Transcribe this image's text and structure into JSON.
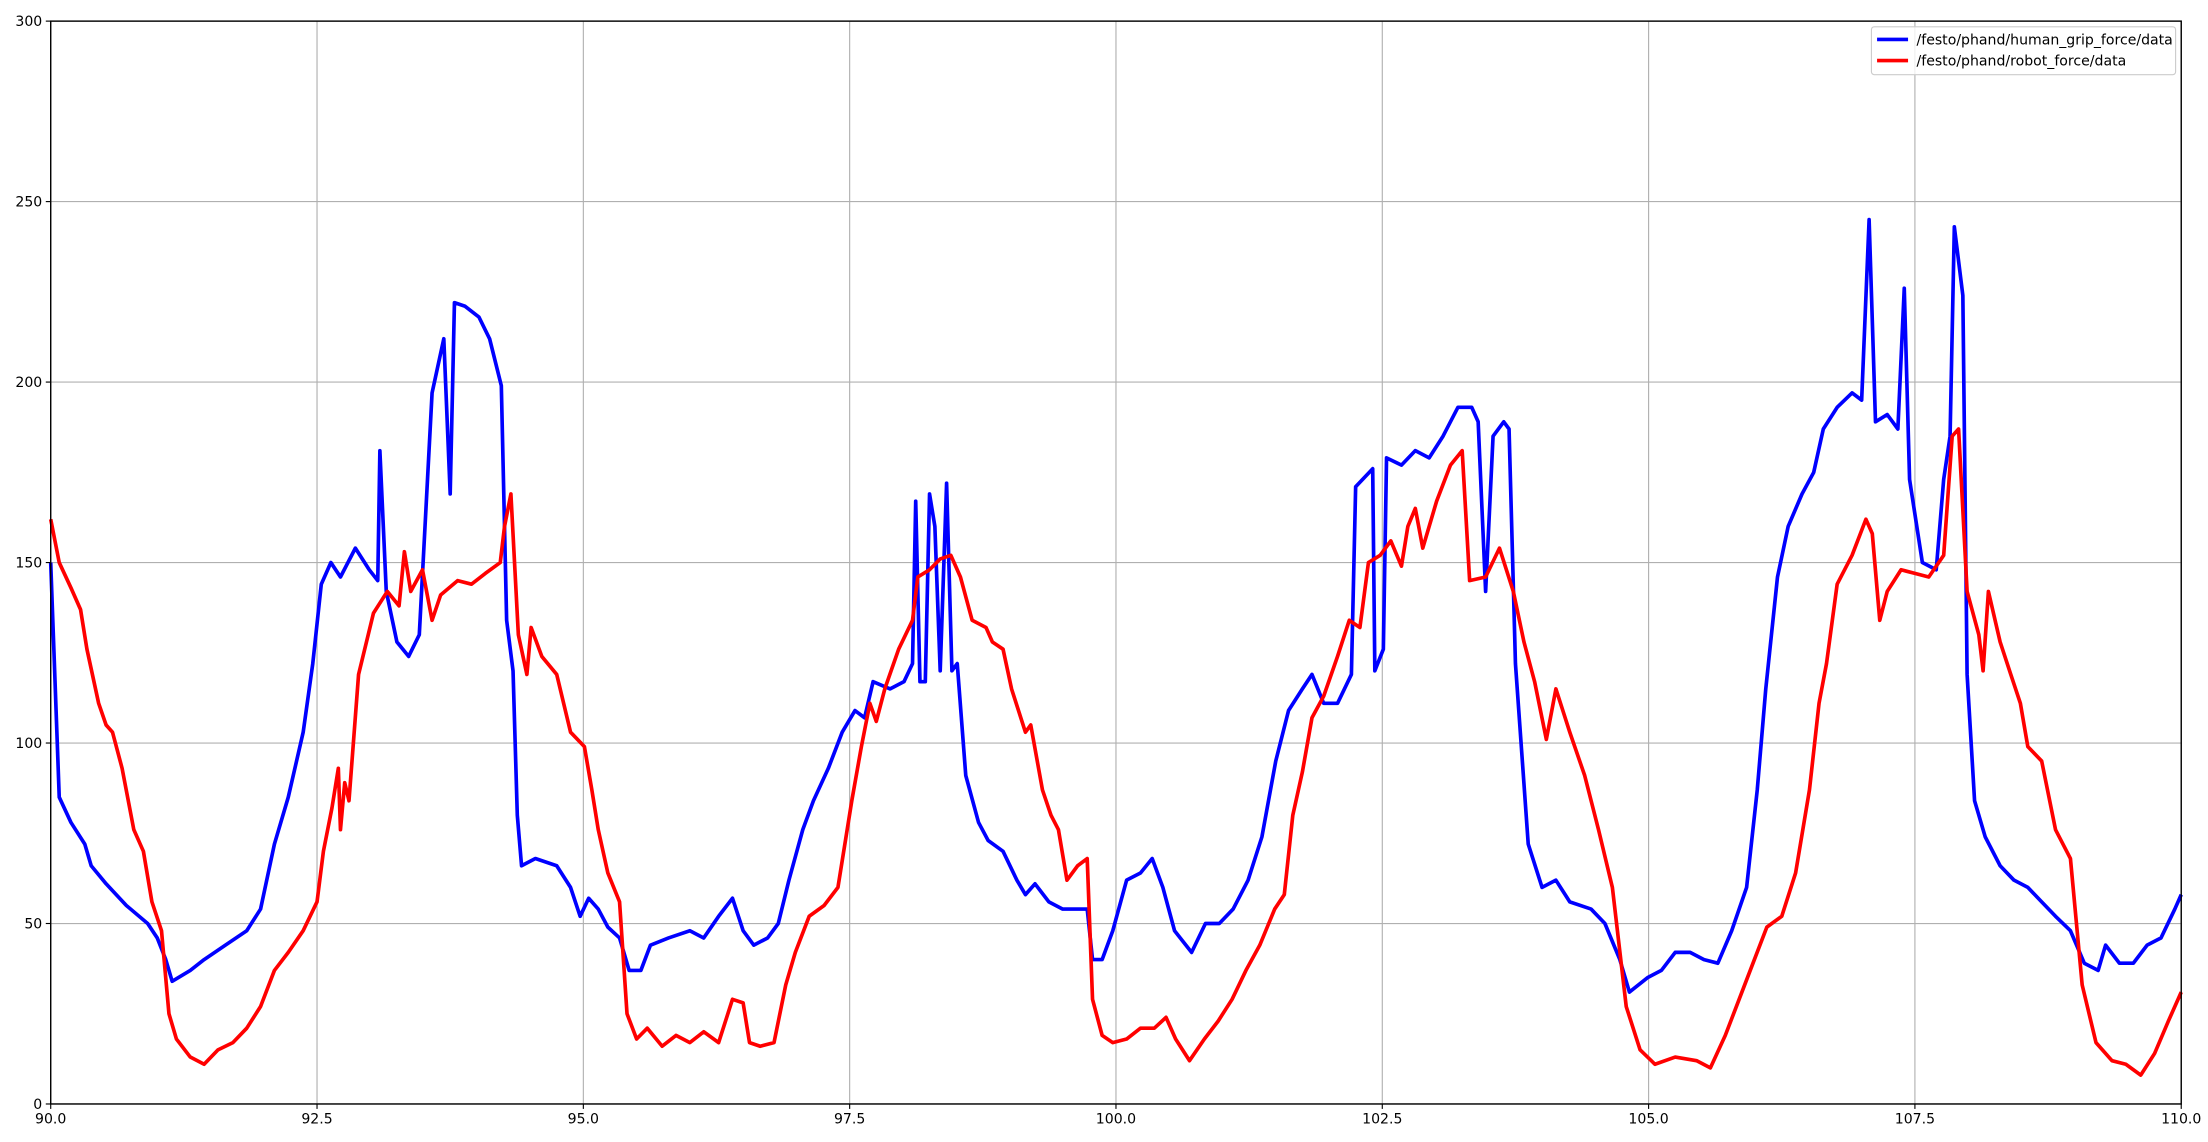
{
  "chart_data": {
    "type": "line",
    "xlim": [
      90,
      110
    ],
    "xticks": [
      {
        "value": 90,
        "label": "90.0"
      },
      {
        "value": 92.5,
        "label": "92.5"
      },
      {
        "value": 95,
        "label": "95.0"
      },
      {
        "value": 97.5,
        "label": "97.5"
      },
      {
        "value": 100,
        "label": "100.0"
      },
      {
        "value": 102.5,
        "label": "102.5"
      },
      {
        "value": 105,
        "label": "105.0"
      },
      {
        "value": 107.5,
        "label": "107.5"
      },
      {
        "value": 110,
        "label": "110.0"
      }
    ],
    "ylim": [
      0,
      300
    ],
    "yticks": [
      0,
      50,
      100,
      150,
      200,
      250,
      300
    ],
    "grid": true,
    "legend": "upper right",
    "series": [
      {
        "name": "/festo/phand/human_grip_force/data",
        "color": "#0000ff",
        "x": [
          90.0,
          90.08,
          90.19,
          90.32,
          90.38,
          90.52,
          90.71,
          90.91,
          91.0,
          91.08,
          91.14,
          91.31,
          91.44,
          91.64,
          91.84,
          91.97,
          92.1,
          92.23,
          92.37,
          92.46,
          92.54,
          92.63,
          92.72,
          92.86,
          92.99,
          93.07,
          93.09,
          93.15,
          93.25,
          93.36,
          93.46,
          93.58,
          93.69,
          93.75,
          93.79,
          93.89,
          94.02,
          94.12,
          94.23,
          94.28,
          94.34,
          94.38,
          94.42,
          94.55,
          94.75,
          94.88,
          94.97,
          95.05,
          95.14,
          95.23,
          95.34,
          95.43,
          95.54,
          95.63,
          95.8,
          96.0,
          96.13,
          96.27,
          96.4,
          96.5,
          96.6,
          96.73,
          96.83,
          96.93,
          97.06,
          97.16,
          97.3,
          97.43,
          97.55,
          97.64,
          97.72,
          97.88,
          98.01,
          98.09,
          98.12,
          98.16,
          98.21,
          98.25,
          98.3,
          98.35,
          98.41,
          98.46,
          98.51,
          98.59,
          98.71,
          98.8,
          98.94,
          99.07,
          99.15,
          99.24,
          99.37,
          99.5,
          99.64,
          99.73,
          99.78,
          99.87,
          99.97,
          100.1,
          100.23,
          100.34,
          100.44,
          100.55,
          100.71,
          100.84,
          100.97,
          101.1,
          101.24,
          101.37,
          101.5,
          101.62,
          101.75,
          101.84,
          101.95,
          102.08,
          102.21,
          102.25,
          102.41,
          102.43,
          102.51,
          102.54,
          102.68,
          102.81,
          102.94,
          103.07,
          103.21,
          103.34,
          103.4,
          103.47,
          103.54,
          103.64,
          103.69,
          103.75,
          103.87,
          104.0,
          104.13,
          104.26,
          104.46,
          104.59,
          104.73,
          104.82,
          104.99,
          105.12,
          105.25,
          105.39,
          105.52,
          105.65,
          105.78,
          105.92,
          106.02,
          106.1,
          106.21,
          106.31,
          106.44,
          106.55,
          106.64,
          106.77,
          106.91,
          107.0,
          107.07,
          107.13,
          107.24,
          107.34,
          107.4,
          107.45,
          107.57,
          107.7,
          107.77,
          107.83,
          107.87,
          107.95,
          107.99,
          108.06,
          108.16,
          108.3,
          108.43,
          108.56,
          108.69,
          108.82,
          108.96,
          109.09,
          109.22,
          109.29,
          109.42,
          109.55,
          109.68,
          109.81,
          109.94,
          110.0
        ],
        "values": [
          150,
          85,
          78,
          72,
          66,
          61,
          55,
          50,
          46,
          40,
          34,
          37,
          40,
          44,
          48,
          54,
          72,
          85,
          103,
          122,
          144,
          150,
          146,
          154,
          148,
          145,
          181,
          142,
          128,
          124,
          130,
          197,
          212,
          169,
          222,
          221,
          218,
          212,
          199,
          134,
          120,
          80,
          66,
          68,
          66,
          60,
          52,
          57,
          54,
          49,
          46,
          37,
          37,
          44,
          46,
          48,
          46,
          52,
          57,
          48,
          44,
          46,
          50,
          62,
          76,
          84,
          93,
          103,
          109,
          107,
          117,
          115,
          117,
          122,
          167,
          117,
          117,
          169,
          160,
          120,
          172,
          120,
          122,
          91,
          78,
          73,
          70,
          62,
          58,
          61,
          56,
          54,
          54,
          54,
          40,
          40,
          48,
          62,
          64,
          68,
          60,
          48,
          42,
          50,
          50,
          54,
          62,
          74,
          95,
          109,
          115,
          119,
          111,
          111,
          119,
          171,
          176,
          120,
          126,
          179,
          177,
          181,
          179,
          185,
          193,
          193,
          189,
          142,
          185,
          189,
          187,
          122,
          72,
          60,
          62,
          56,
          54,
          50,
          40,
          31,
          35,
          37,
          42,
          42,
          40,
          39,
          48,
          60,
          87,
          115,
          146,
          160,
          169,
          175,
          187,
          193,
          197,
          195,
          245,
          189,
          191,
          187,
          226,
          173,
          150,
          148,
          173,
          185,
          243,
          224,
          119,
          84,
          74,
          66,
          62,
          60,
          56,
          52,
          48,
          39,
          37,
          44,
          39,
          39,
          44,
          46,
          54,
          58
        ]
      },
      {
        "name": "/festo/phand/robot_force/data",
        "color": "#ff0000",
        "x": [
          90.0,
          90.08,
          90.19,
          90.28,
          90.34,
          90.45,
          90.52,
          90.58,
          90.67,
          90.78,
          90.87,
          90.95,
          91.04,
          91.11,
          91.18,
          91.31,
          91.44,
          91.57,
          91.71,
          91.84,
          91.97,
          92.1,
          92.23,
          92.37,
          92.5,
          92.56,
          92.64,
          92.7,
          92.72,
          92.76,
          92.8,
          92.89,
          93.03,
          93.16,
          93.27,
          93.32,
          93.38,
          93.49,
          93.58,
          93.66,
          93.82,
          93.95,
          94.08,
          94.22,
          94.26,
          94.32,
          94.39,
          94.47,
          94.51,
          94.61,
          94.75,
          94.88,
          95.01,
          95.08,
          95.14,
          95.23,
          95.34,
          95.41,
          95.5,
          95.6,
          95.74,
          95.87,
          96.0,
          96.13,
          96.27,
          96.4,
          96.5,
          96.56,
          96.66,
          96.79,
          96.9,
          96.99,
          97.12,
          97.26,
          97.39,
          97.52,
          97.61,
          97.69,
          97.75,
          97.83,
          97.96,
          98.09,
          98.14,
          98.25,
          98.35,
          98.45,
          98.54,
          98.65,
          98.78,
          98.84,
          98.94,
          99.02,
          99.15,
          99.2,
          99.31,
          99.39,
          99.46,
          99.54,
          99.64,
          99.73,
          99.78,
          99.87,
          99.97,
          100.1,
          100.23,
          100.36,
          100.47,
          100.56,
          100.69,
          100.83,
          100.96,
          101.09,
          101.22,
          101.35,
          101.49,
          101.58,
          101.66,
          101.75,
          101.84,
          101.95,
          102.08,
          102.19,
          102.29,
          102.37,
          102.48,
          102.58,
          102.68,
          102.74,
          102.81,
          102.88,
          103.01,
          103.14,
          103.25,
          103.32,
          103.47,
          103.6,
          103.73,
          103.83,
          103.93,
          104.04,
          104.13,
          104.26,
          104.4,
          104.53,
          104.66,
          104.79,
          104.92,
          105.06,
          105.25,
          105.45,
          105.58,
          105.72,
          105.85,
          105.98,
          106.11,
          106.25,
          106.38,
          106.51,
          106.6,
          106.67,
          106.77,
          106.91,
          107.04,
          107.1,
          107.17,
          107.24,
          107.37,
          107.5,
          107.63,
          107.77,
          107.85,
          107.91,
          107.99,
          108.1,
          108.14,
          108.19,
          108.3,
          108.4,
          108.49,
          108.56,
          108.69,
          108.82,
          108.96,
          109.07,
          109.2,
          109.35,
          109.48,
          109.62,
          109.75,
          109.88,
          110.0
        ],
        "values": [
          162,
          150,
          143,
          137,
          126,
          111,
          105,
          103,
          93,
          76,
          70,
          56,
          48,
          25,
          18,
          13,
          11,
          15,
          17,
          21,
          27,
          37,
          42,
          48,
          56,
          70,
          82,
          93,
          76,
          89,
          84,
          119,
          136,
          142,
          138,
          153,
          142,
          148,
          134,
          141,
          145,
          144,
          147,
          150,
          160,
          169,
          130,
          119,
          132,
          124,
          119,
          103,
          99,
          87,
          76,
          64,
          56,
          25,
          18,
          21,
          16,
          19,
          17,
          20,
          17,
          29,
          28,
          17,
          16,
          17,
          33,
          42,
          52,
          55,
          60,
          84,
          99,
          111,
          106,
          115,
          126,
          134,
          146,
          148,
          151,
          152,
          146,
          134,
          132,
          128,
          126,
          115,
          103,
          105,
          87,
          80,
          76,
          62,
          66,
          68,
          29,
          19,
          17,
          18,
          21,
          21,
          24,
          18,
          12,
          18,
          23,
          29,
          37,
          44,
          54,
          58,
          80,
          92,
          107,
          113,
          124,
          134,
          132,
          150,
          152,
          156,
          149,
          160,
          165,
          154,
          167,
          177,
          181,
          145,
          146,
          154,
          142,
          128,
          117,
          101,
          115,
          103,
          91,
          76,
          60,
          27,
          15,
          11,
          13,
          12,
          10,
          19,
          29,
          39,
          49,
          52,
          64,
          87,
          111,
          122,
          144,
          152,
          162,
          158,
          134,
          142,
          148,
          147,
          146,
          152,
          185,
          187,
          142,
          130,
          120,
          142,
          128,
          119,
          111,
          99,
          95,
          76,
          68,
          33,
          17,
          12,
          11,
          8,
          14,
          23,
          31
        ]
      }
    ]
  }
}
